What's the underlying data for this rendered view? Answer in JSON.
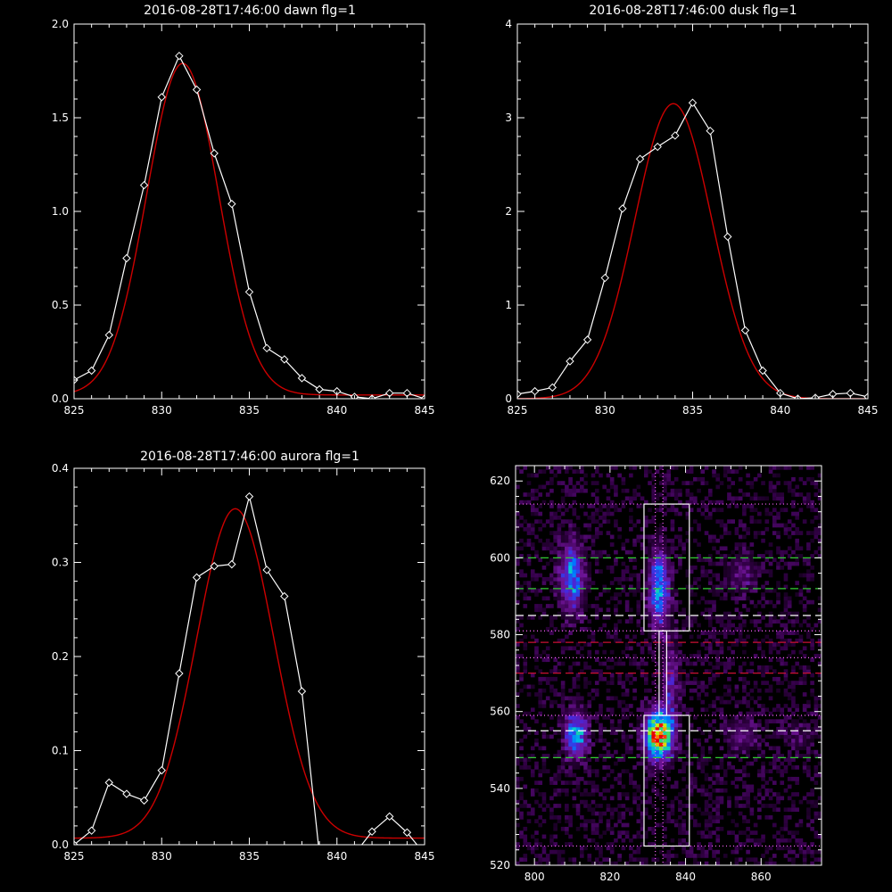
{
  "chart_data": [
    {
      "type": "line",
      "title": "2016-08-28T17:46:00 dawn flg=1",
      "xlim": [
        825,
        845
      ],
      "ylim": [
        0,
        2.0
      ],
      "xticks": [
        "825",
        "830",
        "835",
        "840",
        "845"
      ],
      "xtick_values": [
        825,
        830,
        835,
        840,
        845
      ],
      "yticks": [
        "0.0",
        "0.5",
        "1.0",
        "1.5",
        "2.0"
      ],
      "ytick_values": [
        0,
        0.5,
        1.0,
        1.5,
        2.0
      ],
      "series": [
        {
          "color": "#ffffff",
          "marker": "diamond",
          "x": [
            825,
            826,
            827,
            828,
            829,
            830,
            831,
            832,
            833,
            834,
            835,
            836,
            837,
            838,
            839,
            840,
            841,
            842,
            843,
            844,
            845
          ],
          "y": [
            0.1,
            0.15,
            0.34,
            0.75,
            1.14,
            1.61,
            1.83,
            1.65,
            1.31,
            1.04,
            0.57,
            0.27,
            0.21,
            0.11,
            0.05,
            0.04,
            0.01,
            0.0,
            0.03,
            0.03,
            0.0
          ]
        },
        {
          "color": "#cc0000",
          "fit": "gaussian",
          "amplitude": 1.77,
          "center": 831.2,
          "sigma": 2.05,
          "offset": 0.02
        }
      ]
    },
    {
      "type": "line",
      "title": "2016-08-28T17:46:00 dusk flg=1",
      "xlim": [
        825,
        845
      ],
      "ylim": [
        0,
        4
      ],
      "xticks": [
        "825",
        "830",
        "835",
        "840",
        "845"
      ],
      "xtick_values": [
        825,
        830,
        835,
        840,
        845
      ],
      "yticks": [
        "0",
        "1",
        "2",
        "3",
        "4"
      ],
      "ytick_values": [
        0,
        1,
        2,
        3,
        4
      ],
      "series": [
        {
          "color": "#ffffff",
          "marker": "diamond",
          "x": [
            825,
            826,
            827,
            828,
            829,
            830,
            831,
            832,
            833,
            834,
            835,
            836,
            837,
            838,
            839,
            840,
            841,
            842,
            843,
            844,
            845
          ],
          "y": [
            0.05,
            0.08,
            0.12,
            0.4,
            0.63,
            1.29,
            2.03,
            2.56,
            2.69,
            2.81,
            3.16,
            2.86,
            1.73,
            0.73,
            0.3,
            0.06,
            0.0,
            0.01,
            0.05,
            0.06,
            0.02
          ]
        },
        {
          "color": "#cc0000",
          "fit": "gaussian",
          "amplitude": 3.15,
          "center": 833.9,
          "sigma": 2.2,
          "offset": 0.0
        }
      ]
    },
    {
      "type": "line",
      "title": "2016-08-28T17:46:00 aurora flg=1",
      "xlim": [
        825,
        845
      ],
      "ylim": [
        0,
        0.4
      ],
      "xticks": [
        "825",
        "830",
        "835",
        "840",
        "845"
      ],
      "xtick_values": [
        825,
        830,
        835,
        840,
        845
      ],
      "yticks": [
        "0.0",
        "0.1",
        "0.2",
        "0.3",
        "0.4"
      ],
      "ytick_values": [
        0,
        0.1,
        0.2,
        0.3,
        0.4
      ],
      "series": [
        {
          "color": "#ffffff",
          "marker": "diamond",
          "x": [
            825,
            826,
            827,
            828,
            829,
            830,
            831,
            832,
            833,
            834,
            835,
            836,
            837,
            838,
            839,
            840,
            841,
            842,
            843,
            844,
            845
          ],
          "y": [
            0.0,
            0.015,
            0.066,
            0.054,
            0.047,
            0.079,
            0.182,
            0.284,
            0.296,
            0.298,
            0.37,
            0.292,
            0.264,
            0.163,
            -0.01,
            -0.02,
            -0.01,
            0.014,
            0.03,
            0.013,
            -0.01
          ]
        },
        {
          "color": "#cc0000",
          "fit": "gaussian",
          "amplitude": 0.35,
          "center": 834.2,
          "sigma": 2.2,
          "offset": 0.007
        }
      ]
    },
    {
      "type": "heatmap",
      "title": "",
      "xlim": [
        795,
        876
      ],
      "ylim": [
        520,
        624
      ],
      "xticks": [
        "800",
        "820",
        "840",
        "860"
      ],
      "xtick_values": [
        800,
        820,
        840,
        860
      ],
      "yticks": [
        "520",
        "540",
        "560",
        "580",
        "600",
        "620"
      ],
      "ytick_values": [
        520,
        540,
        560,
        580,
        600,
        620
      ],
      "blobs": [
        {
          "x": 811,
          "y": 554,
          "peak": 0.55,
          "sx": 2.0,
          "sy": 4.0
        },
        {
          "x": 810,
          "y": 595,
          "peak": 0.45,
          "sx": 2.2,
          "sy": 6.0
        },
        {
          "x": 833,
          "y": 554,
          "peak": 1.0,
          "sx": 2.4,
          "sy": 4.2
        },
        {
          "x": 833,
          "y": 592,
          "peak": 0.5,
          "sx": 1.8,
          "sy": 7.0
        },
        {
          "x": 836,
          "y": 568,
          "peak": 0.22,
          "sx": 1.5,
          "sy": 8.0
        },
        {
          "x": 855,
          "y": 554,
          "peak": 0.18,
          "sx": 3.0,
          "sy": 3.0
        },
        {
          "x": 855,
          "y": 596,
          "peak": 0.15,
          "sx": 3.0,
          "sy": 4.0
        },
        {
          "x": 870,
          "y": 554,
          "peak": 0.1,
          "sx": 3.0,
          "sy": 3.0
        }
      ],
      "boxes": [
        {
          "x0": 829,
          "x1": 841,
          "y0": 581,
          "y1": 614
        },
        {
          "x0": 829,
          "x1": 841,
          "y0": 525,
          "y1": 559
        },
        {
          "x0": 833,
          "x1": 835,
          "y0": 559,
          "y1": 581
        }
      ],
      "hlines": [
        {
          "y": 614,
          "color": "#ff66ff",
          "style": "dotted"
        },
        {
          "y": 600,
          "color": "#33cc33",
          "style": "dashed"
        },
        {
          "y": 592,
          "color": "#33cc33",
          "style": "dashed"
        },
        {
          "y": 585,
          "color": "#ffffff",
          "style": "dashed"
        },
        {
          "y": 581,
          "color": "#ff66ff",
          "style": "dotted"
        },
        {
          "y": 578,
          "color": "#cc1133",
          "style": "dashed"
        },
        {
          "y": 574,
          "color": "#ff66ff",
          "style": "dotted"
        },
        {
          "y": 570,
          "color": "#cc1133",
          "style": "dashed"
        },
        {
          "y": 559,
          "color": "#ff66ff",
          "style": "dotted"
        },
        {
          "y": 555,
          "color": "#ffffff",
          "style": "dashed"
        },
        {
          "y": 548,
          "color": "#33cc33",
          "style": "dashed"
        },
        {
          "y": 525,
          "color": "#ff66ff",
          "style": "dotted"
        }
      ],
      "vlines": [
        {
          "x": 832,
          "color": "#ff66ff",
          "style": "dotted"
        },
        {
          "x": 834,
          "color": "#ff66ff",
          "style": "dotted"
        }
      ]
    }
  ]
}
